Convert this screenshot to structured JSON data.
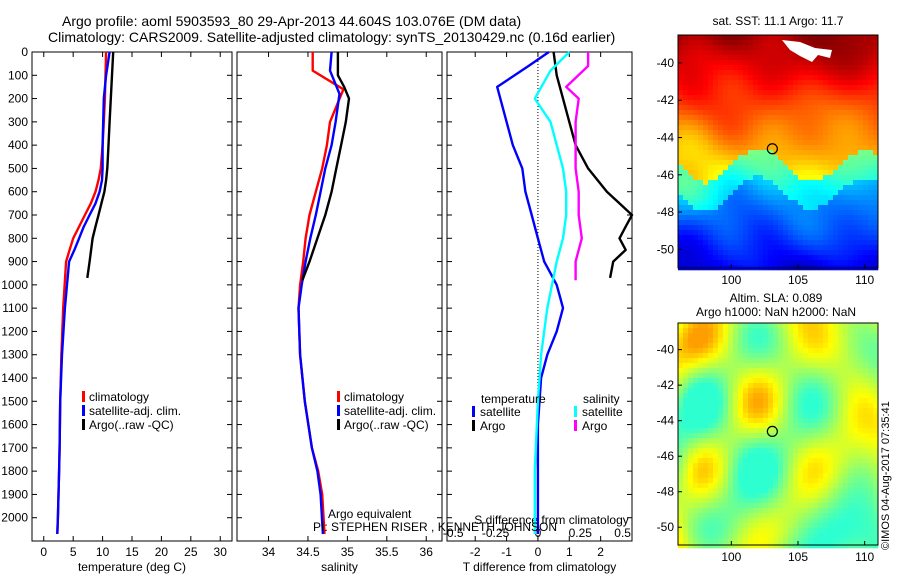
{
  "title_line1": "Argo profile: aoml 5903593_80 29-Apr-2013 44.604S 103.076E (DM data)",
  "title_line2": "Climatology: CARS2009. Satellite-adjusted climatology: synTS_20130429.nc (0.16d earlier)",
  "stamp": "©IMOS 04-Aug-2017 07:35:41",
  "colors": {
    "climatology": "#ff0000",
    "satellite": "#0000ff",
    "argo": "#000000",
    "salinity_satellite": "#00ffff",
    "salinity_argo": "#ff00ff"
  },
  "chart_data": [
    {
      "type": "line",
      "xlabel": "temperature (deg C)",
      "ylabel": "",
      "xlim": [
        -2,
        32
      ],
      "ylim": [
        2100,
        0
      ],
      "x_ticks": [
        0,
        5,
        10,
        15,
        20,
        25,
        30
      ],
      "y_ticks": [
        0,
        100,
        200,
        300,
        400,
        500,
        600,
        700,
        800,
        900,
        1000,
        1100,
        1200,
        1300,
        1400,
        1500,
        1600,
        1700,
        1800,
        1900,
        2000
      ],
      "legend": [
        "climatology",
        "satellite-adj. clim.",
        "Argo(..raw -QC)"
      ],
      "legend_position": "middle-center",
      "series": [
        {
          "name": "climatology",
          "color_key": "climatology",
          "x": [
            10.6,
            10.5,
            10.4,
            10.2,
            10.0,
            9.7,
            9.3,
            8.8,
            8.0,
            7.0,
            6.0,
            5.0,
            4.4,
            3.8,
            3.3,
            3.0,
            2.8,
            2.7,
            2.6,
            2.5,
            2.4,
            2.3
          ],
          "y": [
            0,
            100,
            200,
            300,
            400,
            500,
            550,
            600,
            650,
            700,
            750,
            800,
            850,
            900,
            1100,
            1300,
            1500,
            1700,
            1800,
            1900,
            2000,
            2070
          ]
        },
        {
          "name": "satellite-adj. clim.",
          "color_key": "satellite",
          "x": [
            11.2,
            10.6,
            10.2,
            10.1,
            10.0,
            10.0,
            9.9,
            9.5,
            8.8,
            7.8,
            6.8,
            6.0,
            5.2,
            4.3,
            3.6,
            3.1,
            2.8,
            2.7,
            2.6,
            2.5,
            2.4,
            2.3
          ],
          "y": [
            0,
            100,
            200,
            300,
            400,
            500,
            550,
            600,
            650,
            700,
            750,
            800,
            850,
            900,
            1100,
            1300,
            1500,
            1700,
            1800,
            1900,
            2000,
            2070
          ]
        },
        {
          "name": "Argo(..raw -QC)",
          "color_key": "argo",
          "x": [
            11.8,
            11.6,
            11.4,
            11.2,
            11.0,
            10.8,
            10.6,
            10.3,
            9.8,
            9.3,
            8.8,
            8.3,
            7.8,
            7.4
          ],
          "y": [
            0,
            100,
            200,
            300,
            400,
            500,
            550,
            600,
            650,
            700,
            750,
            800,
            900,
            970
          ]
        }
      ]
    },
    {
      "type": "line",
      "xlabel": "salinity",
      "ylabel": "",
      "xlim": [
        33.6,
        36.2
      ],
      "ylim": [
        2100,
        0
      ],
      "x_ticks": [
        34,
        34.5,
        35,
        35.5,
        36
      ],
      "legend": [
        "climatology",
        "satellite-adj. clim.",
        "Argo(..raw -QC)"
      ],
      "legend_position": "middle-center",
      "annotation_lines": [
        "Argo equivalent",
        "PI: STEPHEN RISER , KENNETH JOHNSON"
      ],
      "series": [
        {
          "name": "climatology",
          "color_key": "climatology",
          "x": [
            34.56,
            34.56,
            34.95,
            34.78,
            34.74,
            34.68,
            34.6,
            34.52,
            34.47,
            34.44,
            34.4,
            34.38,
            34.4,
            34.46,
            34.55,
            34.63,
            34.68,
            34.71
          ],
          "y": [
            0,
            80,
            160,
            300,
            400,
            500,
            600,
            700,
            800,
            900,
            1000,
            1100,
            1300,
            1500,
            1700,
            1800,
            1900,
            2070
          ]
        },
        {
          "name": "satellite-adj. clim.",
          "color_key": "satellite",
          "x": [
            34.8,
            34.78,
            34.9,
            34.85,
            34.8,
            34.72,
            34.66,
            34.6,
            34.53,
            34.47,
            34.42,
            34.38,
            34.4,
            34.46,
            34.55,
            34.62,
            34.66,
            34.69
          ],
          "y": [
            0,
            80,
            180,
            300,
            400,
            500,
            600,
            700,
            800,
            900,
            1000,
            1100,
            1300,
            1500,
            1700,
            1800,
            1900,
            2070
          ]
        },
        {
          "name": "Argo(..raw -QC)",
          "color_key": "argo",
          "x": [
            34.88,
            34.88,
            34.96,
            35.02,
            34.98,
            34.92,
            34.86,
            34.8,
            34.72,
            34.62,
            34.52,
            34.43
          ],
          "y": [
            0,
            100,
            150,
            200,
            300,
            400,
            500,
            600,
            700,
            800,
            900,
            980
          ]
        }
      ]
    },
    {
      "type": "line",
      "xlabel": "T difference from climatology",
      "xlabel2": "S difference from climatology",
      "ylabel": "",
      "xlim": [
        -2.9,
        3.0
      ],
      "ylim": [
        2100,
        0
      ],
      "x_ticks": [
        -2,
        -1,
        0,
        1,
        2
      ],
      "x_ticks_s": [
        "-0.5",
        "-0.25",
        "0",
        "0.25",
        "0.5"
      ],
      "legend_titles": [
        "temperature",
        "salinity"
      ],
      "legend": [
        "satellite",
        "Argo",
        "satellite",
        "Argo"
      ],
      "legend_position": "middle-center",
      "series": [
        {
          "name": "satellite",
          "group": "temperature",
          "color_key": "satellite",
          "x": [
            0.35,
            -0.3,
            -1.3,
            -1.0,
            -0.8,
            -0.5,
            -0.4,
            -0.2,
            0.0,
            0.2,
            0.4,
            0.6,
            0.7,
            0.8,
            0.6,
            0.3,
            0.1,
            0.0,
            0.0,
            0.0,
            0.0
          ],
          "y": [
            0,
            60,
            150,
            300,
            400,
            500,
            600,
            700,
            800,
            900,
            950,
            1000,
            1050,
            1100,
            1200,
            1300,
            1400,
            1600,
            1800,
            1900,
            2070
          ]
        },
        {
          "name": "Argo",
          "group": "temperature",
          "color_key": "argo",
          "x": [
            0.5,
            0.6,
            0.8,
            1.0,
            1.2,
            1.6,
            2.2,
            2.6,
            3.0,
            2.8,
            2.6,
            2.8,
            2.4,
            2.3
          ],
          "y": [
            0,
            100,
            200,
            300,
            400,
            500,
            600,
            650,
            700,
            750,
            800,
            850,
            900,
            970
          ]
        },
        {
          "name": "satellite",
          "group": "salinity",
          "color_key": "salinity_satellite",
          "x": [
            1.0,
            0.4,
            -0.1,
            0.4,
            0.6,
            0.8,
            0.9,
            0.9,
            0.8,
            0.6,
            0.3,
            0.1,
            0.0,
            -0.1,
            -0.1
          ],
          "y": [
            0,
            80,
            200,
            300,
            400,
            500,
            600,
            700,
            800,
            900,
            1100,
            1300,
            1500,
            1800,
            2070
          ]
        },
        {
          "name": "Argo",
          "group": "salinity",
          "color_key": "salinity_argo",
          "x": [
            1.6,
            1.6,
            0.9,
            1.3,
            1.2,
            1.2,
            1.2,
            1.3,
            1.3,
            1.4,
            1.2,
            1.2
          ],
          "y": [
            0,
            60,
            150,
            200,
            300,
            400,
            500,
            600,
            700,
            800,
            900,
            980
          ]
        }
      ]
    },
    {
      "type": "heatmap",
      "title": "sat. SST: 11.1  Argo: 11.7",
      "x_ticks": [
        100,
        105,
        110
      ],
      "y_ticks": [
        -40,
        -42,
        -44,
        -46,
        -48,
        -50
      ],
      "xlim": [
        96,
        111
      ],
      "ylim": [
        -51,
        -38.5
      ],
      "marker": {
        "x": 103.076,
        "y": -44.604
      }
    },
    {
      "type": "heatmap",
      "title_line1": "Altim. SLA: 0.089",
      "title_line2": "Argo h1000: NaN h2000: NaN",
      "x_ticks": [
        100,
        105,
        110
      ],
      "y_ticks": [
        -40,
        -42,
        -44,
        -46,
        -48,
        -50
      ],
      "xlim": [
        96,
        111
      ],
      "ylim": [
        -51,
        -38.5
      ],
      "marker": {
        "x": 103.076,
        "y": -44.604
      }
    }
  ]
}
